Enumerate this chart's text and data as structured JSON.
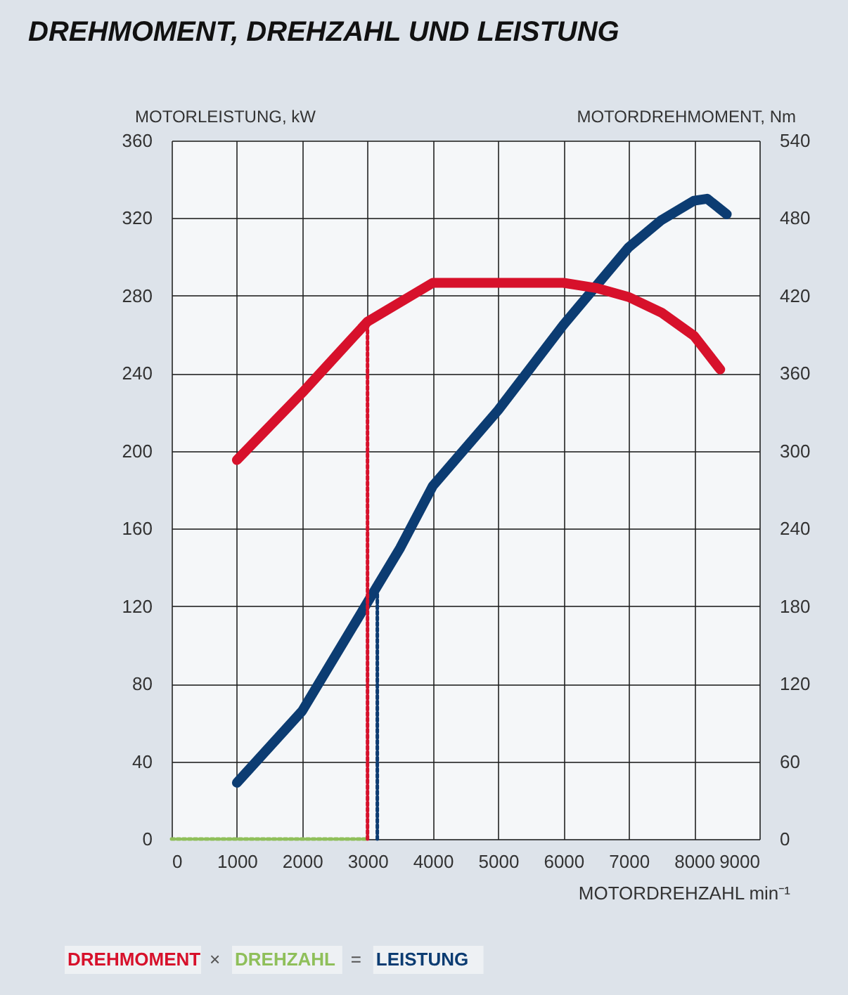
{
  "chart_data": {
    "type": "line",
    "title": "DREHMOMENT, DREHZAHL UND LEISTUNG",
    "xlabel": "MOTORDREHZAHL min⁻¹",
    "ylabel": "MOTORLEISTUNG, kW",
    "y2label": "MOTORDREHMOMENT, Nm",
    "xlim": [
      0,
      9000
    ],
    "xticks": [
      0,
      1000,
      2000,
      3000,
      4000,
      5000,
      6000,
      7000,
      8000,
      9000
    ],
    "ylim": [
      0,
      360
    ],
    "yticks": [
      0,
      40,
      80,
      120,
      160,
      200,
      240,
      280,
      320,
      360
    ],
    "y2lim": [
      0,
      540
    ],
    "y2ticks": [
      0,
      60,
      120,
      180,
      240,
      300,
      360,
      420,
      480,
      540
    ],
    "grid": true,
    "legend": "bottom left",
    "line_style": "solid",
    "annotations": [
      "×",
      "="
    ],
    "series": [
      {
        "name": "DREHMOMENT",
        "color": "#d7112b",
        "axis": "y2",
        "x": [
          1000,
          2000,
          3000,
          4000,
          6000,
          6500,
          7000,
          7500,
          8000,
          8400
        ],
        "values": [
          293,
          345,
          400,
          430,
          430,
          426,
          419,
          407,
          389,
          363
        ]
      },
      {
        "name": "DREHZAHL",
        "color": "#8fbf5a",
        "line_style": "dotted",
        "x": [
          0,
          3000
        ],
        "values": [
          0,
          0
        ]
      },
      {
        "name": "LEISTUNG",
        "color": "#0c3c72",
        "x": [
          1000,
          2000,
          3000,
          3500,
          4000,
          5000,
          6000,
          7000,
          7500,
          8000,
          8200,
          8500
        ],
        "values": [
          29,
          66,
          122,
          150,
          182,
          221,
          265,
          305,
          319,
          329,
          330,
          322
        ]
      },
      {
        "color": "#d7112b",
        "axis": "y2",
        "line_style": "dotted",
        "x": [
          3000,
          3000
        ],
        "values": [
          0,
          400
        ]
      },
      {
        "color": "#0c3c72",
        "line_style": "dotted",
        "x": [
          3150,
          3150
        ],
        "values": [
          0,
          130
        ]
      }
    ]
  }
}
